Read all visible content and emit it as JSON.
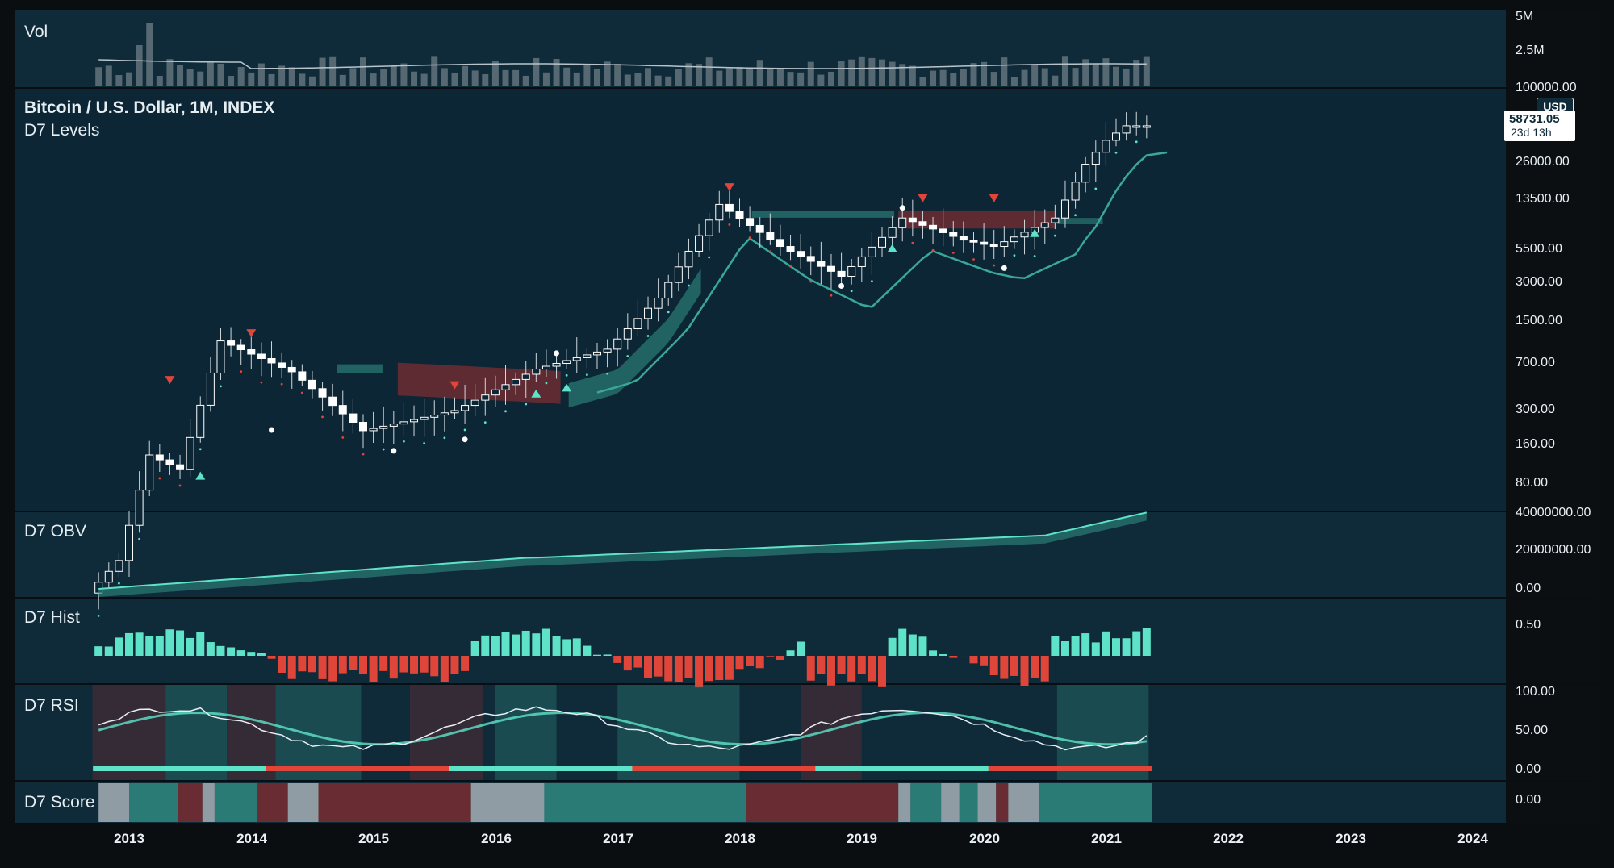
{
  "chart_title": "Bitcoin / U.S. Dollar, 1M, INDEX",
  "panels": {
    "vol": {
      "label": "Vol",
      "ticks": [
        "5M",
        "2.5M"
      ]
    },
    "main": {
      "label": "D7 Levels",
      "ticks": [
        "100000.00",
        "26000.00",
        "13500.00",
        "5500.00",
        "3000.00",
        "1500.00",
        "700.00",
        "300.00",
        "160.00",
        "80.00"
      ],
      "currency": "USD",
      "price_label": "58731.05",
      "countdown": "23d 13h"
    },
    "obv": {
      "label": "D7 OBV",
      "ticks": [
        "40000000.00",
        "20000000.00",
        "0.00"
      ]
    },
    "hist": {
      "label": "D7 Hist",
      "ticks": [
        "0.50"
      ]
    },
    "rsi": {
      "label": "D7 RSI",
      "ticks": [
        "100.00",
        "50.00",
        "0.00"
      ]
    },
    "score": {
      "label": "D7 Score",
      "ticks": [
        "0.00"
      ]
    }
  },
  "x_axis": [
    "2013",
    "2014",
    "2015",
    "2016",
    "2017",
    "2018",
    "2019",
    "2020",
    "2021",
    "2022",
    "2023",
    "2024"
  ],
  "colors": {
    "bull": "#5fe3c8",
    "bear": "#e0453a",
    "teal_fill": "#2f8a80",
    "red_fill": "#7a2d33",
    "panel_bg": "#0f2a38"
  },
  "chart_data": {
    "type": "candlestick",
    "title": "Bitcoin / U.S. Dollar, 1M, INDEX",
    "scale": "log",
    "ylim": [
      50,
      100000
    ],
    "monthly_close_approx": [
      {
        "x": "2012-10",
        "y": 11
      },
      {
        "x": "2013-01",
        "y": 20
      },
      {
        "x": "2013-04",
        "y": 139
      },
      {
        "x": "2013-07",
        "y": 106
      },
      {
        "x": "2013-11",
        "y": 1130
      },
      {
        "x": "2014-06",
        "y": 640
      },
      {
        "x": "2015-01",
        "y": 217
      },
      {
        "x": "2015-10",
        "y": 314
      },
      {
        "x": "2016-06",
        "y": 673
      },
      {
        "x": "2017-01",
        "y": 970
      },
      {
        "x": "2017-06",
        "y": 2480
      },
      {
        "x": "2017-12",
        "y": 13850
      },
      {
        "x": "2018-06",
        "y": 6400
      },
      {
        "x": "2018-12",
        "y": 3700
      },
      {
        "x": "2019-06",
        "y": 10800
      },
      {
        "x": "2019-12",
        "y": 7200
      },
      {
        "x": "2020-03",
        "y": 6400
      },
      {
        "x": "2020-09",
        "y": 10800
      },
      {
        "x": "2020-12",
        "y": 29000
      },
      {
        "x": "2021-02",
        "y": 45000
      },
      {
        "x": "2021-04",
        "y": 58731
      }
    ]
  }
}
